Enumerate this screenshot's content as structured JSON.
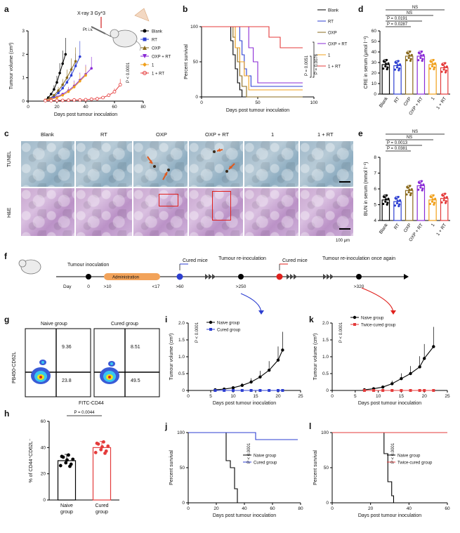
{
  "panels": {
    "a": "a",
    "b": "b",
    "c": "c",
    "d": "d",
    "e": "e",
    "f": "f",
    "g": "g",
    "h": "h",
    "i": "i",
    "j": "j",
    "k": "k",
    "l": "l"
  },
  "panel_a": {
    "annotation_xray": "X-ray 3 Gy*3",
    "annotation_pt": "Pt i.v.",
    "pvalue": "P < 0.0001",
    "legend": [
      "Blank",
      "RT",
      "OXP",
      "OXP + RT",
      "1",
      "1 + RT"
    ]
  },
  "panel_b": {
    "legend": [
      "Blank",
      "RT",
      "OXP",
      "OXP + RT",
      "1",
      "1 + RT"
    ],
    "pvalue_top": "P = 0.0076",
    "pvalue_bottom": "P = 0.0051"
  },
  "panel_d": {
    "pvalues": [
      "NS",
      "NS",
      "P = 0.0191",
      "P = 0.0287"
    ]
  },
  "panel_e": {
    "pvalues": [
      "NS",
      "NS",
      "P = 0.0013",
      "P = 0.0381"
    ]
  },
  "panel_c": {
    "columns": [
      "Blank",
      "RT",
      "OXP",
      "OXP + RT",
      "1",
      "1 + RT"
    ],
    "rows": [
      "TUNEL",
      "H&E"
    ],
    "scale": "100 μm"
  },
  "panel_f": {
    "events": [
      "Tumour inoculation",
      "Administration",
      "Cured mice",
      "Tumour re-inoculation",
      "Cured mice",
      "Tumour re-inoculation once again"
    ],
    "days": [
      "Day",
      "0",
      ">10",
      "<17",
      ">60",
      ">250",
      ">320"
    ]
  },
  "panel_g": {
    "groups": [
      "Naive group",
      "Cured group"
    ],
    "naive_values": [
      "9.36",
      "23.8"
    ],
    "cured_values": [
      "8.51",
      "49.5"
    ],
    "ylabel": "PB450-CD62L",
    "xlabel": "FITC-CD44"
  },
  "chart_data": [
    {
      "id": "a",
      "type": "line",
      "xlabel": "Days post tumour inoculation",
      "ylabel": "Tumour volume (cm³)",
      "xlim": [
        0,
        80
      ],
      "ylim": [
        0,
        3
      ],
      "xticks": [
        "0",
        "20",
        "40",
        "60",
        "80"
      ],
      "yticks": [
        "0",
        "1",
        "2",
        "3"
      ],
      "series": [
        {
          "name": "Blank",
          "color": "#000000",
          "x": [
            12,
            14,
            16,
            18,
            20,
            22,
            24,
            26
          ],
          "y": [
            0.05,
            0.15,
            0.3,
            0.5,
            0.8,
            1.2,
            1.6,
            2.0
          ]
        },
        {
          "name": "RT",
          "color": "#2d3fd1",
          "x": [
            12,
            15,
            18,
            21,
            24,
            27,
            30,
            33,
            36
          ],
          "y": [
            0.05,
            0.1,
            0.2,
            0.35,
            0.55,
            0.8,
            1.1,
            1.5,
            1.9
          ]
        },
        {
          "name": "OXP",
          "color": "#8a6a1c",
          "x": [
            12,
            15,
            18,
            21,
            24,
            27,
            30,
            33
          ],
          "y": [
            0.05,
            0.12,
            0.25,
            0.45,
            0.7,
            1.0,
            1.35,
            1.7
          ]
        },
        {
          "name": "OXP + RT",
          "color": "#8a2bd6",
          "x": [
            12,
            16,
            20,
            24,
            28,
            32,
            36,
            40,
            44
          ],
          "y": [
            0.05,
            0.1,
            0.18,
            0.3,
            0.45,
            0.65,
            0.9,
            1.15,
            1.4
          ]
        },
        {
          "name": "1",
          "color": "#f0a01c",
          "x": [
            12,
            16,
            20,
            24,
            28,
            32,
            36,
            40
          ],
          "y": [
            0.05,
            0.08,
            0.15,
            0.25,
            0.4,
            0.6,
            0.85,
            1.1
          ]
        },
        {
          "name": "1 + RT",
          "color": "#e43b3b",
          "x": [
            12,
            16,
            20,
            24,
            28,
            32,
            36,
            40,
            44,
            48,
            52,
            56,
            60,
            64
          ],
          "y": [
            0.02,
            0.02,
            0.03,
            0.03,
            0.04,
            0.05,
            0.05,
            0.06,
            0.08,
            0.1,
            0.15,
            0.25,
            0.4,
            0.7
          ]
        }
      ]
    },
    {
      "id": "b",
      "type": "line",
      "xlabel": "Days post tumour inoculation",
      "ylabel": "Percent survival",
      "xlim": [
        0,
        100
      ],
      "ylim": [
        0,
        100
      ],
      "xticks": [
        "0",
        "50",
        "100"
      ],
      "yticks": [
        "0",
        "50",
        "100"
      ],
      "series": [
        {
          "name": "Blank",
          "color": "#000000",
          "x": [
            0,
            24,
            26,
            28,
            30,
            32,
            34,
            36
          ],
          "y": [
            100,
            100,
            80,
            60,
            40,
            20,
            10,
            0
          ]
        },
        {
          "name": "RT",
          "color": "#2d3fd1",
          "x": [
            0,
            32,
            34,
            36,
            38,
            40,
            44,
            90
          ],
          "y": [
            100,
            100,
            80,
            60,
            40,
            30,
            15,
            15
          ]
        },
        {
          "name": "OXP",
          "color": "#8a6a1c",
          "x": [
            0,
            26,
            28,
            30,
            32,
            34,
            36,
            40,
            90
          ],
          "y": [
            100,
            100,
            85,
            70,
            50,
            30,
            15,
            0,
            0
          ]
        },
        {
          "name": "OXP + RT",
          "color": "#8a2bd6",
          "x": [
            0,
            38,
            42,
            46,
            50,
            90
          ],
          "y": [
            100,
            100,
            70,
            50,
            20,
            20
          ]
        },
        {
          "name": "1",
          "color": "#f0a01c",
          "x": [
            0,
            26,
            30,
            34,
            38,
            42,
            90
          ],
          "y": [
            100,
            100,
            70,
            50,
            30,
            10,
            10
          ]
        },
        {
          "name": "1 + RT",
          "color": "#e43b3b",
          "x": [
            0,
            50,
            60,
            70,
            90
          ],
          "y": [
            100,
            100,
            85,
            70,
            70
          ]
        }
      ]
    },
    {
      "id": "d",
      "type": "bar",
      "ylabel": "CRE in serum (μmol l⁻¹)",
      "categories": [
        "Blank",
        "RT",
        "OXP",
        "OXP + RT",
        "1",
        "1 + RT"
      ],
      "values": [
        28,
        27,
        36,
        36,
        28,
        25
      ],
      "ylim": [
        0,
        60
      ],
      "yticks": [
        "0",
        "10",
        "20",
        "30",
        "40",
        "50",
        "60"
      ],
      "colors": [
        "#000000",
        "#2d3fd1",
        "#8a6a1c",
        "#8a2bd6",
        "#f0a01c",
        "#e43b3b"
      ]
    },
    {
      "id": "e",
      "type": "bar",
      "ylabel": "BUN in serum (mmol l⁻¹)",
      "categories": [
        "Blank",
        "RT",
        "OXP",
        "OXP + RT",
        "1",
        "1 + RT"
      ],
      "values": [
        5.3,
        5.2,
        5.9,
        6.2,
        5.3,
        5.4
      ],
      "ylim": [
        4,
        8
      ],
      "yticks": [
        "4",
        "5",
        "6",
        "7",
        "8"
      ],
      "colors": [
        "#000000",
        "#2d3fd1",
        "#8a6a1c",
        "#8a2bd6",
        "#f0a01c",
        "#e43b3b"
      ]
    },
    {
      "id": "h",
      "type": "bar",
      "ylabel": "% of CD44⁺CD62L⁻",
      "categories": [
        "Naive group",
        "Cured group"
      ],
      "values": [
        30,
        40
      ],
      "pvalue": "P = 0.0044",
      "ylim": [
        0,
        60
      ],
      "yticks": [
        "0",
        "20",
        "40",
        "60"
      ],
      "colors": [
        "#000000",
        "#e43b3b"
      ]
    },
    {
      "id": "i",
      "type": "line",
      "xlabel": "Days post tumour inoculation",
      "ylabel": "Tumour volume (cm³)",
      "pvalue": "P < 0.0001",
      "xlim": [
        0,
        25
      ],
      "ylim": [
        0,
        2.0
      ],
      "xticks": [
        "0",
        "5",
        "10",
        "15",
        "20",
        "25"
      ],
      "yticks": [
        "0",
        "0.5",
        "1.0",
        "1.5",
        "2.0"
      ],
      "series": [
        {
          "name": "Naive group",
          "color": "#000000",
          "x": [
            6,
            8,
            10,
            12,
            14,
            16,
            18,
            20,
            21
          ],
          "y": [
            0.02,
            0.04,
            0.08,
            0.15,
            0.25,
            0.4,
            0.6,
            0.9,
            1.2
          ]
        },
        {
          "name": "Cured group",
          "color": "#2d3fd1",
          "x": [
            6,
            8,
            10,
            12,
            14,
            16,
            18,
            20,
            21
          ],
          "y": [
            0,
            0,
            0,
            0,
            0,
            0,
            0,
            0,
            0
          ]
        }
      ]
    },
    {
      "id": "k",
      "type": "line",
      "xlabel": "Days post tumour inoculation",
      "ylabel": "Tumour volume (cm³)",
      "pvalue": "P < 0.0001",
      "xlim": [
        0,
        25
      ],
      "ylim": [
        0,
        2.0
      ],
      "xticks": [
        "0",
        "5",
        "10",
        "15",
        "20",
        "25"
      ],
      "yticks": [
        "0",
        "0.5",
        "1.0",
        "1.5",
        "2.0"
      ],
      "series": [
        {
          "name": "Naive group",
          "color": "#000000",
          "x": [
            7,
            9,
            11,
            13,
            15,
            17,
            19,
            20,
            22
          ],
          "y": [
            0.02,
            0.05,
            0.1,
            0.2,
            0.35,
            0.5,
            0.7,
            0.95,
            1.3
          ]
        },
        {
          "name": "Twice-cured group",
          "color": "#e43b3b",
          "x": [
            7,
            9,
            11,
            13,
            15,
            17,
            19,
            20,
            22
          ],
          "y": [
            0,
            0,
            0,
            0,
            0,
            0,
            0,
            0,
            0
          ]
        }
      ]
    },
    {
      "id": "j",
      "type": "line",
      "xlabel": "Days post tumour inoculation",
      "ylabel": "Percent survival",
      "pvalue": "P < 0.0001",
      "xlim": [
        0,
        80
      ],
      "ylim": [
        0,
        100
      ],
      "xticks": [
        "0",
        "20",
        "40",
        "60",
        "80"
      ],
      "yticks": [
        "0",
        "50",
        "100"
      ],
      "series": [
        {
          "name": "Naive group",
          "color": "#000000",
          "x": [
            0,
            24,
            27,
            30,
            33,
            35
          ],
          "y": [
            100,
            100,
            60,
            50,
            20,
            0
          ]
        },
        {
          "name": "Cured group",
          "color": "#2d3fd1",
          "x": [
            0,
            48,
            78
          ],
          "y": [
            100,
            90,
            90
          ]
        }
      ]
    },
    {
      "id": "l",
      "type": "line",
      "xlabel": "Days post tumour inoculation",
      "ylabel": "Percent survival",
      "pvalue": "P < 0.0001",
      "xlim": [
        0,
        60
      ],
      "ylim": [
        0,
        100
      ],
      "xticks": [
        "0",
        "20",
        "40",
        "60"
      ],
      "yticks": [
        "0",
        "50",
        "100"
      ],
      "series": [
        {
          "name": "Naive group",
          "color": "#000000",
          "x": [
            0,
            25,
            27,
            29,
            31,
            32
          ],
          "y": [
            100,
            100,
            70,
            30,
            10,
            0
          ]
        },
        {
          "name": "Twice-cured group",
          "color": "#e43b3b",
          "x": [
            0,
            60
          ],
          "y": [
            100,
            100
          ]
        }
      ]
    }
  ]
}
